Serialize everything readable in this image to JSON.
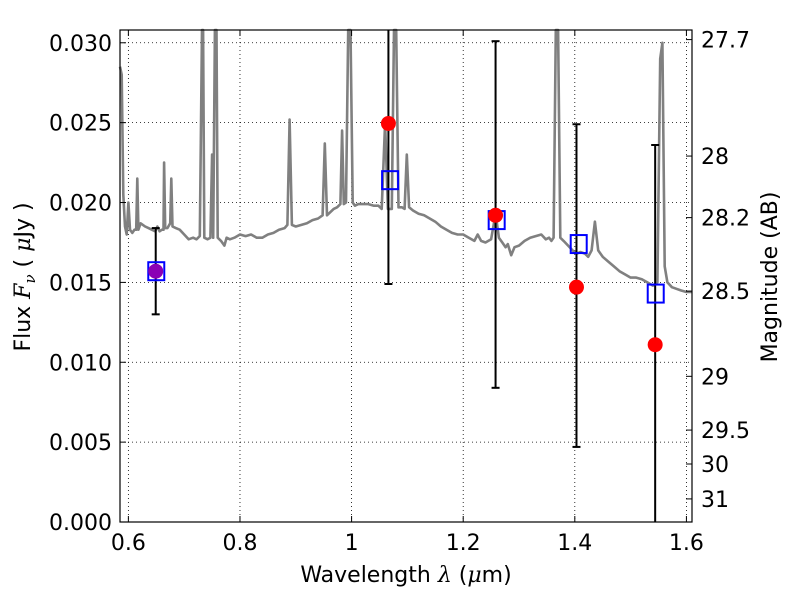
{
  "chart_data": {
    "type": "scatter",
    "title": "",
    "xlabel": {
      "prefix": "Wavelength  ",
      "symbol": "λ",
      "mid": " (",
      "mu": "μ",
      "suffix": "m)"
    },
    "ylabel": {
      "prefix": "Flux  ",
      "symbol": "F",
      "sub": "ν",
      "mid": "  ( ",
      "mu": "μ",
      "suffix": "Jy )"
    },
    "y2label": "Magnitude (AB)",
    "xlim": [
      0.585,
      1.61
    ],
    "ylim": [
      0.0,
      0.0308
    ],
    "grid": true,
    "xticks": [
      {
        "v": 0.6,
        "label": "0.6"
      },
      {
        "v": 0.8,
        "label": "0.8"
      },
      {
        "v": 1.0,
        "label": "1"
      },
      {
        "v": 1.2,
        "label": "1.2"
      },
      {
        "v": 1.4,
        "label": "1.4"
      },
      {
        "v": 1.6,
        "label": "1.6"
      }
    ],
    "yticks": [
      {
        "v": 0.0,
        "label": "0.000"
      },
      {
        "v": 0.005,
        "label": "0.005"
      },
      {
        "v": 0.01,
        "label": "0.010"
      },
      {
        "v": 0.015,
        "label": "0.015"
      },
      {
        "v": 0.02,
        "label": "0.020"
      },
      {
        "v": 0.025,
        "label": "0.025"
      },
      {
        "v": 0.03,
        "label": "0.030"
      }
    ],
    "y2ticks": [
      {
        "mag": 27.7,
        "label": "27.7"
      },
      {
        "mag": 28.0,
        "label": "28"
      },
      {
        "mag": 28.2,
        "label": "28.2"
      },
      {
        "mag": 28.5,
        "label": "28.5"
      },
      {
        "mag": 29.0,
        "label": "29"
      },
      {
        "mag": 29.5,
        "label": "29.5"
      },
      {
        "mag": 30.0,
        "label": "30"
      },
      {
        "mag": 31.0,
        "label": "31"
      }
    ],
    "model_spectrum": {
      "color": "#808080",
      "points": [
        [
          0.585,
          0.0285
        ],
        [
          0.588,
          0.028
        ],
        [
          0.591,
          0.0205
        ],
        [
          0.594,
          0.0185
        ],
        [
          0.597,
          0.018
        ],
        [
          0.6,
          0.02
        ],
        [
          0.603,
          0.0183
        ],
        [
          0.607,
          0.0181
        ],
        [
          0.611,
          0.0183
        ],
        [
          0.614,
          0.0183
        ],
        [
          0.616,
          0.0215
        ],
        [
          0.618,
          0.0183
        ],
        [
          0.622,
          0.0187
        ],
        [
          0.626,
          0.0186
        ],
        [
          0.63,
          0.0185
        ],
        [
          0.636,
          0.0184
        ],
        [
          0.642,
          0.0183
        ],
        [
          0.648,
          0.0182
        ],
        [
          0.652,
          0.0185
        ],
        [
          0.656,
          0.0182
        ],
        [
          0.66,
          0.0183
        ],
        [
          0.663,
          0.0183
        ],
        [
          0.664,
          0.0225
        ],
        [
          0.666,
          0.0184
        ],
        [
          0.67,
          0.0184
        ],
        [
          0.675,
          0.0187
        ],
        [
          0.677,
          0.0215
        ],
        [
          0.679,
          0.0185
        ],
        [
          0.685,
          0.0184
        ],
        [
          0.692,
          0.0183
        ],
        [
          0.7,
          0.018
        ],
        [
          0.708,
          0.0177
        ],
        [
          0.716,
          0.0178
        ],
        [
          0.722,
          0.0177
        ],
        [
          0.728,
          0.0179
        ],
        [
          0.732,
          0.031
        ],
        [
          0.734,
          0.031
        ],
        [
          0.736,
          0.0178
        ],
        [
          0.742,
          0.0177
        ],
        [
          0.747,
          0.0178
        ],
        [
          0.75,
          0.023
        ],
        [
          0.752,
          0.0178
        ],
        [
          0.755,
          0.031
        ],
        [
          0.758,
          0.031
        ],
        [
          0.76,
          0.0178
        ],
        [
          0.766,
          0.0176
        ],
        [
          0.772,
          0.0173
        ],
        [
          0.776,
          0.0178
        ],
        [
          0.782,
          0.0177
        ],
        [
          0.79,
          0.0178
        ],
        [
          0.8,
          0.018
        ],
        [
          0.81,
          0.0179
        ],
        [
          0.82,
          0.018
        ],
        [
          0.83,
          0.0178
        ],
        [
          0.84,
          0.0178
        ],
        [
          0.85,
          0.018
        ],
        [
          0.86,
          0.0181
        ],
        [
          0.87,
          0.0183
        ],
        [
          0.88,
          0.0184
        ],
        [
          0.885,
          0.0186
        ],
        [
          0.889,
          0.0252
        ],
        [
          0.893,
          0.0186
        ],
        [
          0.9,
          0.0185
        ],
        [
          0.91,
          0.0186
        ],
        [
          0.92,
          0.0187
        ],
        [
          0.93,
          0.0189
        ],
        [
          0.94,
          0.019
        ],
        [
          0.948,
          0.0192
        ],
        [
          0.952,
          0.0237
        ],
        [
          0.956,
          0.0192
        ],
        [
          0.962,
          0.0194
        ],
        [
          0.968,
          0.0196
        ],
        [
          0.974,
          0.0197
        ],
        [
          0.98,
          0.0199
        ],
        [
          0.983,
          0.0245
        ],
        [
          0.986,
          0.0199
        ],
        [
          0.99,
          0.02
        ],
        [
          0.994,
          0.031
        ],
        [
          0.998,
          0.031
        ],
        [
          1.002,
          0.02
        ],
        [
          1.006,
          0.0198
        ],
        [
          1.012,
          0.0199
        ],
        [
          1.02,
          0.0199
        ],
        [
          1.03,
          0.0199
        ],
        [
          1.04,
          0.0198
        ],
        [
          1.048,
          0.0198
        ],
        [
          1.054,
          0.0196
        ],
        [
          1.06,
          0.025
        ],
        [
          1.065,
          0.0196
        ],
        [
          1.072,
          0.0196
        ],
        [
          1.076,
          0.031
        ],
        [
          1.08,
          0.031
        ],
        [
          1.084,
          0.0197
        ],
        [
          1.09,
          0.0197
        ],
        [
          1.095,
          0.0196
        ],
        [
          1.099,
          0.023
        ],
        [
          1.103,
          0.0197
        ],
        [
          1.11,
          0.0195
        ],
        [
          1.12,
          0.0193
        ],
        [
          1.13,
          0.0192
        ],
        [
          1.14,
          0.019
        ],
        [
          1.15,
          0.0188
        ],
        [
          1.16,
          0.0185
        ],
        [
          1.17,
          0.0183
        ],
        [
          1.18,
          0.0181
        ],
        [
          1.19,
          0.018
        ],
        [
          1.2,
          0.018
        ],
        [
          1.21,
          0.0178
        ],
        [
          1.22,
          0.0176
        ],
        [
          1.226,
          0.018
        ],
        [
          1.232,
          0.0176
        ],
        [
          1.24,
          0.0175
        ],
        [
          1.25,
          0.0177
        ],
        [
          1.258,
          0.0193
        ],
        [
          1.264,
          0.0178
        ],
        [
          1.27,
          0.0175
        ],
        [
          1.276,
          0.0172
        ],
        [
          1.28,
          0.0174
        ],
        [
          1.286,
          0.0167
        ],
        [
          1.292,
          0.0172
        ],
        [
          1.3,
          0.0173
        ],
        [
          1.31,
          0.0176
        ],
        [
          1.32,
          0.0178
        ],
        [
          1.33,
          0.0179
        ],
        [
          1.34,
          0.018
        ],
        [
          1.348,
          0.0177
        ],
        [
          1.354,
          0.0178
        ],
        [
          1.358,
          0.0176
        ],
        [
          1.362,
          0.0178
        ],
        [
          1.366,
          0.031
        ],
        [
          1.37,
          0.031
        ],
        [
          1.374,
          0.0178
        ],
        [
          1.38,
          0.0176
        ],
        [
          1.388,
          0.0173
        ],
        [
          1.396,
          0.017
        ],
        [
          1.404,
          0.0168
        ],
        [
          1.41,
          0.0169
        ],
        [
          1.418,
          0.0168
        ],
        [
          1.424,
          0.0166
        ],
        [
          1.43,
          0.017
        ],
        [
          1.436,
          0.0188
        ],
        [
          1.442,
          0.017
        ],
        [
          1.45,
          0.0166
        ],
        [
          1.46,
          0.0163
        ],
        [
          1.47,
          0.016
        ],
        [
          1.48,
          0.0157
        ],
        [
          1.49,
          0.0155
        ],
        [
          1.5,
          0.0153
        ],
        [
          1.51,
          0.0153
        ],
        [
          1.52,
          0.0152
        ],
        [
          1.53,
          0.015
        ],
        [
          1.54,
          0.0148
        ],
        [
          1.548,
          0.015
        ],
        [
          1.553,
          0.029
        ],
        [
          1.557,
          0.03
        ],
        [
          1.561,
          0.016
        ],
        [
          1.566,
          0.015
        ],
        [
          1.574,
          0.0147
        ],
        [
          1.582,
          0.0146
        ],
        [
          1.59,
          0.0145
        ],
        [
          1.6,
          0.0144
        ],
        [
          1.61,
          0.0144
        ]
      ]
    },
    "observed": {
      "color": "#ff0000",
      "points": [
        {
          "x": 0.649,
          "y": 0.0157,
          "yerr_low": 0.013,
          "yerr_high": 0.0184
        },
        {
          "x": 1.066,
          "y": 0.02495,
          "yerr_low": 0.0149,
          "yerr_high": 0.031
        },
        {
          "x": 1.258,
          "y": 0.0192,
          "yerr_low": 0.0084,
          "yerr_high": 0.0301
        },
        {
          "x": 1.403,
          "y": 0.0147,
          "yerr_low": 0.0047,
          "yerr_high": 0.0249
        },
        {
          "x": 1.544,
          "y": 0.0111,
          "yerr_low": 0.0,
          "yerr_high": 0.0236
        }
      ]
    },
    "model_synthetic": {
      "color": "#0000ff",
      "points": [
        {
          "x": 0.65,
          "y": 0.0157
        },
        {
          "x": 1.069,
          "y": 0.0214
        },
        {
          "x": 1.26,
          "y": 0.0189
        },
        {
          "x": 1.407,
          "y": 0.0174
        },
        {
          "x": 1.545,
          "y": 0.0143
        }
      ]
    },
    "overlap_color": "#8b00b5"
  }
}
